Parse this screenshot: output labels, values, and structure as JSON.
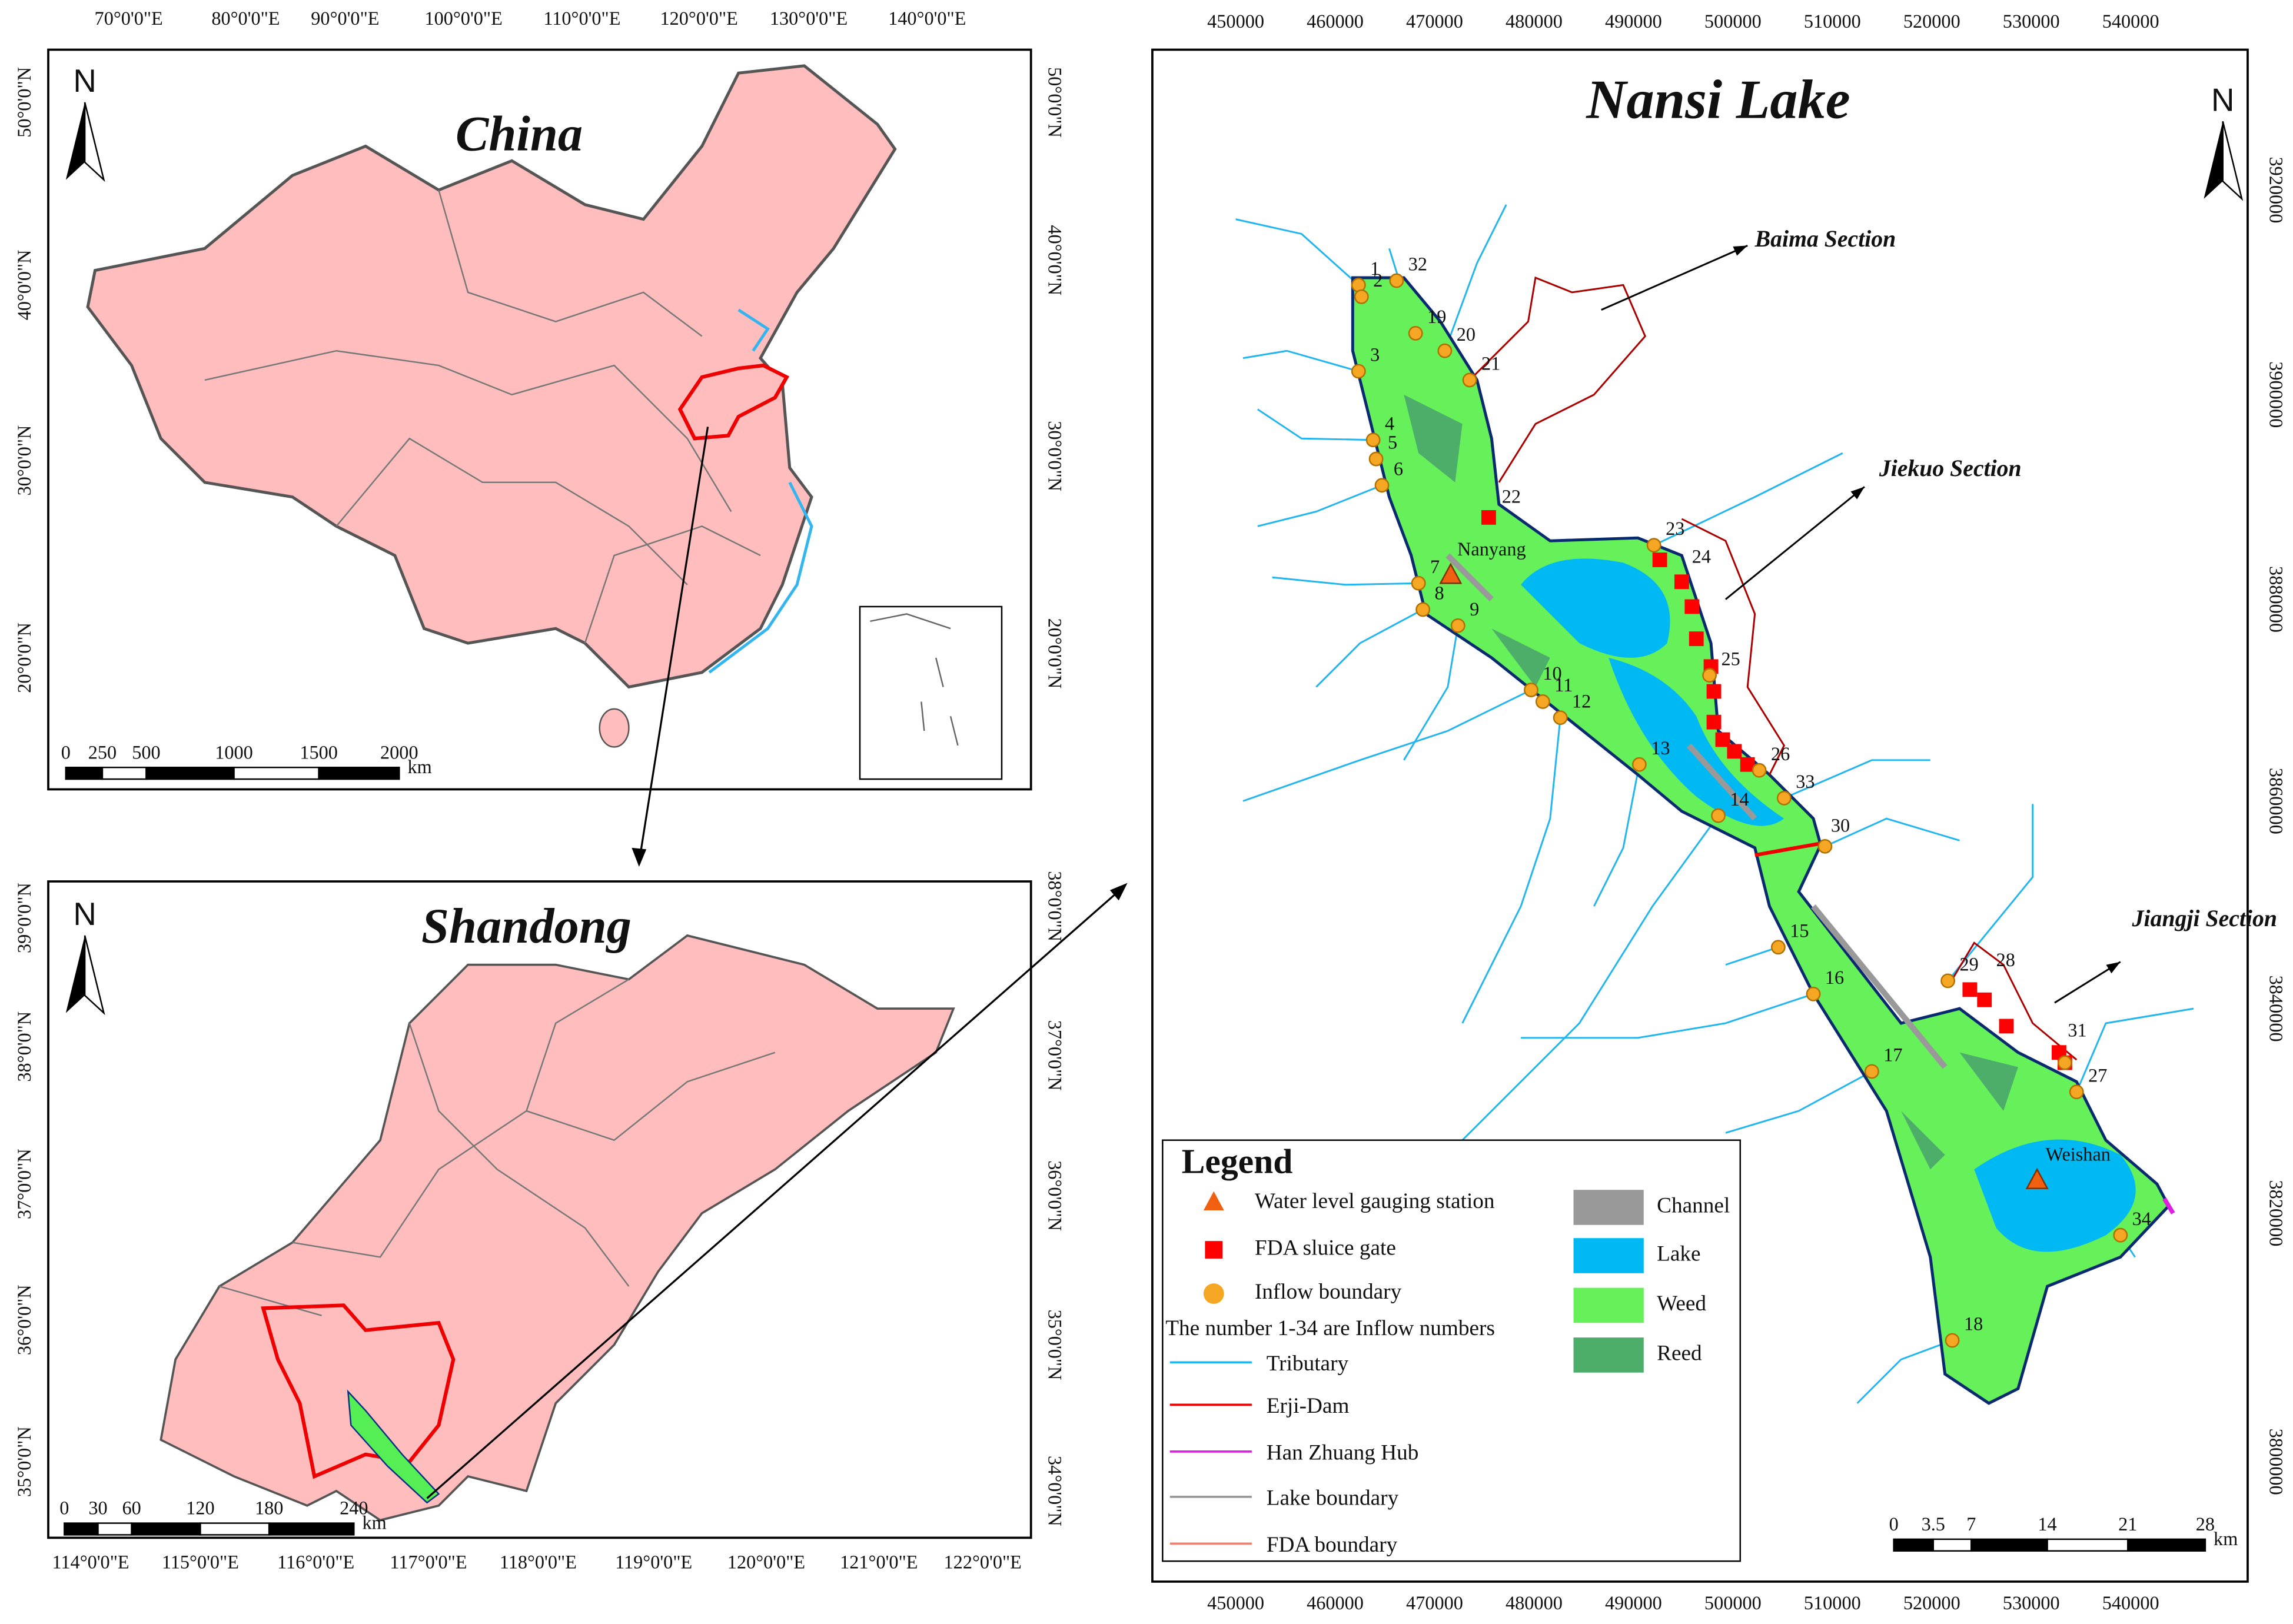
{
  "china_panel": {
    "title": "China",
    "north": "N",
    "lon_labels_top": [
      "70°0'0\"E",
      "80°0'0\"E",
      "90°0'0\"E",
      "100°0'0\"E",
      "110°0'0\"E",
      "120°0'0\"E",
      "130°0'0\"E",
      "140°0'0\"E"
    ],
    "lat_labels_left": [
      "50°0'0\"N",
      "40°0'0\"N",
      "30°0'0\"N",
      "20°0'0\"N"
    ],
    "lat_labels_right": [
      "50°0'0\"N",
      "40°0'0\"N",
      "30°0'0\"N",
      "20°0'0\"N"
    ],
    "scale_labels": [
      "0",
      "250",
      "500",
      "1000",
      "1500",
      "2000"
    ],
    "scale_unit": "km"
  },
  "shandong_panel": {
    "title": "Shandong",
    "north": "N",
    "lon_labels_bottom": [
      "114°0'0\"E",
      "115°0'0\"E",
      "116°0'0\"E",
      "117°0'0\"E",
      "118°0'0\"E",
      "119°0'0\"E",
      "120°0'0\"E",
      "121°0'0\"E",
      "122°0'0\"E"
    ],
    "lat_labels_left": [
      "39°0'0\"N",
      "38°0'0\"N",
      "37°0'0\"N",
      "36°0'0\"N",
      "35°0'0\"N"
    ],
    "lat_labels_right": [
      "38°0'0\"N",
      "37°0'0\"N",
      "36°0'0\"N",
      "35°0'0\"N",
      "34°0'0\"N"
    ],
    "scale_labels": [
      "0",
      "30",
      "60",
      "120",
      "180",
      "240"
    ],
    "scale_unit": "km"
  },
  "nansi_panel": {
    "title": "Nansi Lake",
    "north": "N",
    "x_labels_top": [
      "450000",
      "460000",
      "470000",
      "480000",
      "490000",
      "500000",
      "510000",
      "520000",
      "530000",
      "540000"
    ],
    "x_labels_bottom": [
      "450000",
      "460000",
      "470000",
      "480000",
      "490000",
      "500000",
      "510000",
      "520000",
      "530000",
      "540000"
    ],
    "y_labels_right": [
      "3920000",
      "3900000",
      "3880000",
      "3860000",
      "3840000",
      "3820000",
      "3800000"
    ],
    "scale_labels": [
      "0",
      "3.5",
      "7",
      "14",
      "21",
      "28"
    ],
    "scale_unit": "km",
    "stations": [
      "Nanyang",
      "Weishan"
    ],
    "sections": [
      "Baima Section",
      "Jiekuo Section",
      "Jiangji Section"
    ],
    "inflow_labels": [
      "1",
      "2",
      "3",
      "4",
      "5",
      "6",
      "7",
      "8",
      "9",
      "10",
      "11",
      "12",
      "13",
      "14",
      "15",
      "16",
      "17",
      "18",
      "19",
      "20",
      "21",
      "22",
      "23",
      "24",
      "25",
      "26",
      "27",
      "28",
      "29",
      "30",
      "31",
      "32",
      "33",
      "34"
    ]
  },
  "legend": {
    "title": "Legend",
    "left_items": [
      "Water level gauging station",
      "FDA sluice gate",
      "Inflow boundary"
    ],
    "note": "The number 1-34 are Inflow numbers",
    "line_items": [
      "Tributary",
      "Erji-Dam",
      "Han Zhuang Hub",
      "Lake boundary",
      "FDA boundary"
    ],
    "right_items": [
      "Channel",
      "Lake",
      "Weed",
      "Reed"
    ]
  }
}
